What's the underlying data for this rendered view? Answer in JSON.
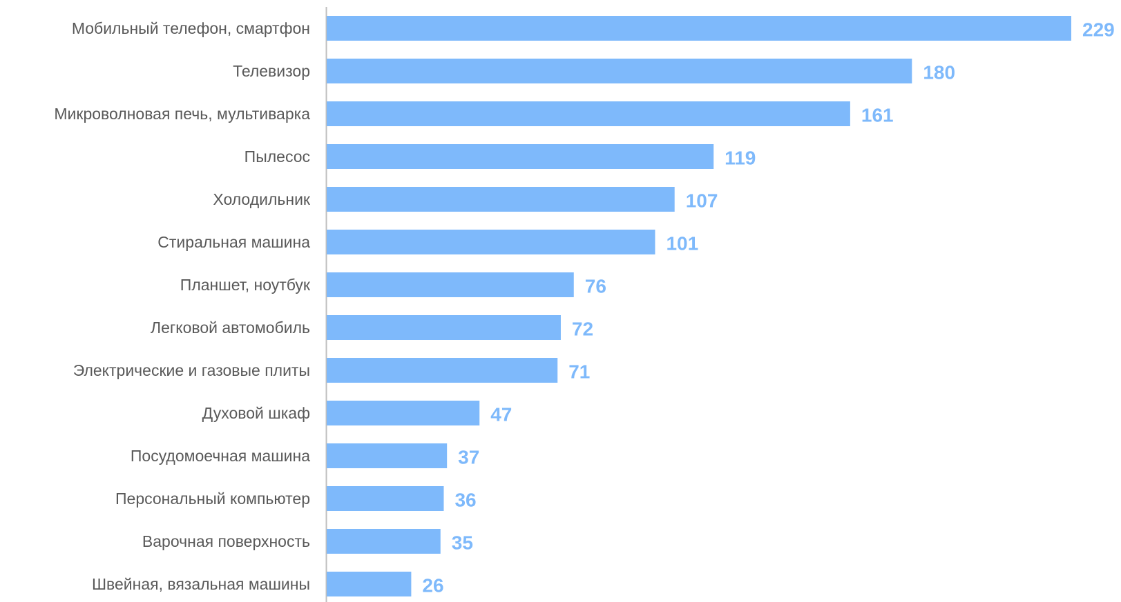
{
  "chart_data": {
    "type": "bar",
    "orientation": "horizontal",
    "categories": [
      "Мобильный телефон, смартфон",
      "Телевизор",
      "Микроволновая печь, мультиварка",
      "Пылесос",
      "Холодильник",
      "Стиральная машина",
      "Планшет, ноутбук",
      "Легковой автомобиль",
      "Электрические и газовые плиты",
      "Духовой шкаф",
      "Посудомоечная машина",
      "Персональный компьютер",
      "Варочная поверхность",
      "Швейная, вязальная машины"
    ],
    "values": [
      229,
      180,
      161,
      119,
      107,
      101,
      76,
      72,
      71,
      47,
      37,
      36,
      35,
      26
    ],
    "value_labels": [
      "229",
      "180",
      "161",
      "119",
      "107",
      "101",
      "76",
      "72",
      "71",
      "47",
      "37",
      "36",
      "35",
      "26"
    ],
    "xlim": [
      0,
      229
    ],
    "grid": false,
    "legend": "none",
    "data_labels": true,
    "colors": {
      "bar": "#7EB9FB",
      "value_label": "#7EB9FB",
      "category_label": "#595959",
      "axis": "#BFBFBF"
    }
  }
}
